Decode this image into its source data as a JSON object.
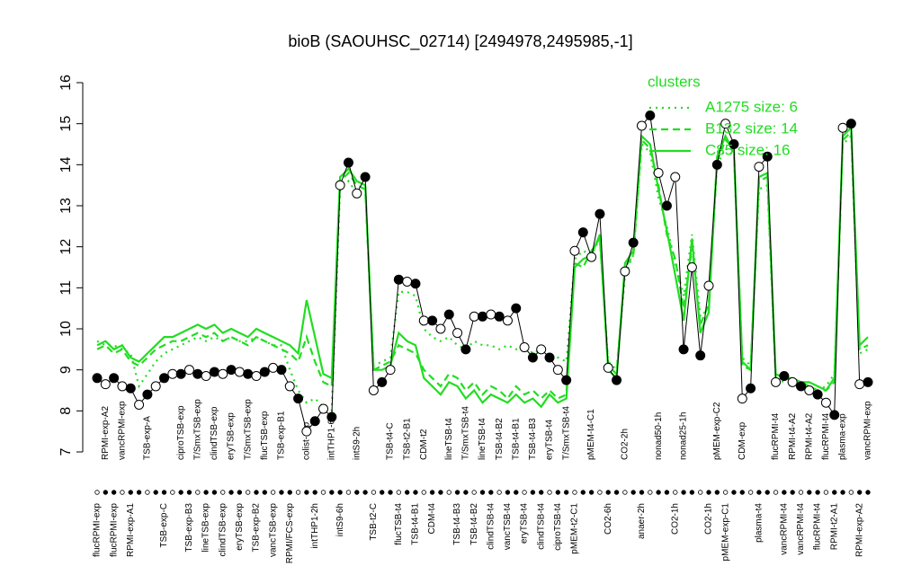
{
  "chart_data": {
    "type": "line",
    "title": "bioB (SAOUHSC_02714) [2494978,2495985,-1]",
    "categories": [
      "flucRPMI-exp",
      "RPMI-exp-A2",
      "flucRPMI-exp",
      "vancRPMI-exp",
      "RPMI-exp-A1",
      null,
      "TSB-exp-A",
      null,
      "TSB-exp-C",
      null,
      "ciproTSB-exp",
      "TSB-exp-B3",
      "T/SmxTSB-exp",
      "lineTSB-exp",
      "clindTSB-exp",
      "clindTSB-exp",
      "eryTSB-exp",
      "eryTSB-exp",
      "T/SmxTSB-exp",
      "TSB-exp-B2",
      "flucTSB-exp",
      "vancTSB-exp",
      "TSB-exp-B1",
      "RPMI/FCS-exp",
      null,
      "colist-exp",
      "intTHP1-2h",
      null,
      "intTHP1-6h",
      "intS9-6h",
      null,
      "intS9-2h",
      null,
      "TSB-t2-C",
      null,
      "TSB-t4-C",
      "flucTSB-t4",
      "TSB-t2-B1",
      "TSB-t4-B1",
      "CDM-t2",
      "CDM-t4",
      null,
      "lineTSB-t4",
      "TSB-t4-B3",
      "T/SmxTSB-t4",
      "TSB-t4-B2",
      "lineTSB-t4",
      "clindTSB-t4",
      "TSB-t4-B2",
      "vancTSB-t4",
      "TSB-t4-B1",
      "eryTSB-t4",
      "TSB-t4-B3",
      "clindTSB-t4",
      "eryTSB-t4",
      "ciproTSB-t4",
      "T/SmxTSB-t4",
      "pMEM-t2-C1",
      null,
      "pMEM-t4-C1",
      null,
      "CO2-6h",
      null,
      "CO2-2h",
      null,
      "anaer-2h",
      null,
      "nonad50-1h",
      null,
      "CO2-1h",
      "nonad25-1h",
      null,
      null,
      "CO2-1h",
      "pMEM-exp-C2",
      "pMEM-exp-C1",
      null,
      "CDM-exp",
      null,
      "plasma-t4",
      null,
      "flucRPMI-t4",
      "vancRPMI-t4",
      "RPMI-t4-A2",
      "vancRPMI-t4",
      "RPMI-t4-A2",
      "flucRPMI-t4",
      "flucRPMI-t4",
      "RPMI-t2-A1",
      "plasma-exp",
      null,
      "RPMI-exp-A2",
      "vancRPMI-exp"
    ],
    "values": [
      8.8,
      8.65,
      8.8,
      8.6,
      8.55,
      8.15,
      8.4,
      8.6,
      8.8,
      8.9,
      8.9,
      9.0,
      8.9,
      8.85,
      8.95,
      8.9,
      9.0,
      8.95,
      8.9,
      8.85,
      8.95,
      9.05,
      9.0,
      8.6,
      8.3,
      7.5,
      7.75,
      8.05,
      7.85,
      13.5,
      14.05,
      13.3,
      13.7,
      8.5,
      8.7,
      9.0,
      11.2,
      11.15,
      11.1,
      10.2,
      10.2,
      10.0,
      10.35,
      9.9,
      9.5,
      10.3,
      10.3,
      10.35,
      10.3,
      10.2,
      10.5,
      9.55,
      9.3,
      9.5,
      9.3,
      9.0,
      8.75,
      11.9,
      12.35,
      11.75,
      12.8,
      9.05,
      8.75,
      11.4,
      12.1,
      14.95,
      15.2,
      13.8,
      13.0,
      13.7,
      9.5,
      11.5,
      9.35,
      11.05,
      14.0,
      15.0,
      14.5,
      8.3,
      8.55,
      13.95,
      14.2,
      8.7,
      8.85,
      8.7,
      8.6,
      8.5,
      8.4,
      8.2,
      7.9,
      14.9,
      15.0,
      8.65,
      8.7
    ],
    "color": "#000000",
    "legend_title": "clusters",
    "legend_color": "#22dd22",
    "series": [
      {
        "name": "A1275 size: 6",
        "color": "#22dd22",
        "dash": "dotted",
        "values": [
          9.7,
          9.6,
          9.6,
          9.5,
          9.4,
          8.6,
          8.9,
          9.2,
          9.4,
          9.5,
          9.6,
          9.7,
          9.8,
          9.7,
          9.8,
          9.7,
          9.8,
          9.7,
          9.7,
          9.8,
          9.7,
          9.6,
          9.6,
          9.0,
          8.5,
          8.2,
          8.3,
          8.1,
          8.0,
          13.4,
          13.6,
          13.3,
          13.4,
          9.1,
          9.2,
          9.3,
          10.9,
          10.9,
          10.8,
          10.0,
          9.8,
          9.7,
          9.8,
          9.6,
          9.5,
          9.7,
          9.6,
          9.6,
          9.5,
          9.6,
          9.5,
          9.6,
          9.4,
          9.5,
          9.3,
          9.3,
          9.2,
          11.7,
          11.9,
          11.8,
          12.2,
          9.2,
          9.0,
          11.3,
          11.8,
          14.5,
          14.3,
          13.2,
          12.5,
          11.6,
          10.8,
          12.3,
          10.3,
          10.5,
          14.0,
          14.4,
          14.2,
          9.3,
          9.1,
          13.4,
          13.5,
          8.8,
          8.7,
          8.7,
          8.6,
          8.6,
          8.5,
          8.6,
          8.9,
          14.5,
          14.7,
          9.4,
          9.5
        ]
      },
      {
        "name": "B132 size: 14",
        "color": "#22dd22",
        "dash": "dashed",
        "values": [
          9.5,
          9.6,
          9.4,
          9.5,
          9.2,
          9.1,
          9.3,
          9.5,
          9.6,
          9.7,
          9.7,
          9.8,
          9.9,
          9.8,
          9.9,
          9.7,
          9.8,
          9.7,
          9.6,
          9.8,
          9.7,
          9.6,
          9.5,
          9.4,
          9.2,
          9.8,
          9.2,
          8.7,
          8.6,
          13.6,
          13.8,
          13.5,
          13.4,
          9.0,
          9.1,
          9.2,
          9.6,
          9.5,
          9.4,
          9.0,
          8.8,
          8.6,
          8.9,
          8.8,
          8.5,
          8.7,
          8.4,
          8.6,
          8.5,
          8.3,
          8.6,
          8.4,
          8.5,
          8.3,
          8.5,
          8.3,
          8.4,
          11.6,
          11.5,
          11.9,
          12.2,
          9.1,
          8.9,
          11.5,
          11.8,
          14.6,
          14.4,
          13.5,
          12.3,
          11.7,
          10.5,
          12.0,
          10.1,
          10.6,
          14.1,
          14.6,
          14.4,
          9.1,
          9.0,
          13.6,
          13.7,
          8.8,
          8.8,
          8.7,
          8.7,
          8.6,
          8.5,
          8.5,
          8.7,
          14.6,
          14.8,
          9.5,
          9.6
        ]
      },
      {
        "name": "C85 size: 16",
        "color": "#22dd22",
        "dash": "solid",
        "values": [
          9.6,
          9.7,
          9.5,
          9.6,
          9.3,
          9.2,
          9.4,
          9.6,
          9.8,
          9.8,
          9.9,
          10.0,
          10.1,
          10.0,
          10.1,
          9.9,
          10.0,
          9.9,
          9.8,
          10.0,
          9.9,
          9.8,
          9.7,
          9.6,
          9.4,
          10.7,
          9.8,
          8.9,
          8.8,
          13.7,
          13.9,
          13.6,
          13.5,
          9.0,
          9.0,
          9.1,
          9.9,
          9.7,
          9.6,
          8.8,
          8.6,
          8.4,
          8.7,
          8.6,
          8.3,
          8.5,
          8.2,
          8.4,
          8.3,
          8.2,
          8.4,
          8.2,
          8.3,
          8.1,
          8.4,
          8.2,
          8.3,
          11.5,
          11.7,
          11.8,
          12.3,
          9.0,
          8.8,
          11.6,
          11.9,
          14.7,
          14.5,
          13.4,
          12.4,
          11.3,
          10.2,
          12.2,
          9.9,
          10.4,
          14.2,
          14.7,
          14.3,
          9.2,
          9.0,
          13.7,
          13.8,
          8.9,
          8.8,
          8.8,
          8.7,
          8.7,
          8.6,
          8.5,
          8.8,
          14.7,
          14.9,
          9.6,
          9.8
        ]
      }
    ],
    "ylim": [
      7,
      16
    ],
    "yticks": [
      7,
      8,
      9,
      10,
      11,
      12,
      13,
      14,
      15,
      16
    ]
  }
}
